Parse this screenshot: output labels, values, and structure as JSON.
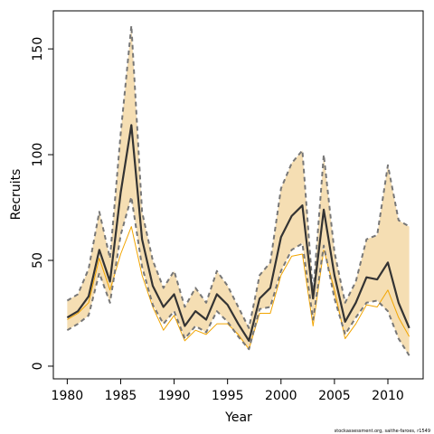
{
  "chart_data": {
    "type": "line",
    "title": "",
    "xlabel": "Year",
    "ylabel": "Recruits",
    "xlim": [
      1978.7,
      2013.3
    ],
    "ylim": [
      -6,
      168
    ],
    "x_ticks": [
      1980,
      1985,
      1990,
      1995,
      2000,
      2005,
      2010
    ],
    "y_ticks": [
      0,
      50,
      100,
      150
    ],
    "grid": false,
    "legend": "none",
    "x": [
      1980,
      1981,
      1982,
      1983,
      1984,
      1985,
      1986,
      1987,
      1988,
      1989,
      1990,
      1991,
      1992,
      1993,
      1994,
      1995,
      1996,
      1997,
      1998,
      1999,
      2000,
      2001,
      2002,
      2003,
      2004,
      2005,
      2006,
      2007,
      2008,
      2009,
      2010,
      2011,
      2012
    ],
    "series": [
      {
        "role": "upper-bound",
        "color": "#777777",
        "values": [
          31,
          34,
          46,
          73,
          51,
          110,
          161,
          73,
          50,
          37,
          45,
          28,
          37,
          30,
          45,
          38,
          28,
          18,
          43,
          49,
          84,
          96,
          102,
          34,
          100,
          54,
          30,
          40,
          60,
          62,
          95,
          69,
          66
        ]
      },
      {
        "role": "estimate",
        "color": "#333333",
        "values": [
          23,
          26,
          33,
          55,
          40,
          82,
          114,
          60,
          38,
          28,
          34,
          19,
          26,
          22,
          34,
          29,
          20,
          12,
          32,
          37,
          61,
          71,
          76,
          32,
          74,
          43,
          21,
          30,
          42,
          41,
          49,
          30,
          18
        ]
      },
      {
        "role": "lower-bound",
        "color": "#777777",
        "values": [
          17,
          20,
          24,
          44,
          30,
          62,
          80,
          47,
          29,
          20,
          26,
          13,
          19,
          16,
          26,
          21,
          14,
          8,
          27,
          28,
          45,
          55,
          58,
          22,
          57,
          32,
          15,
          23,
          30,
          31,
          26,
          13,
          5
        ]
      },
      {
        "role": "alternate-estimate",
        "color": "#f2a500",
        "values": [
          22,
          25,
          30,
          51,
          36,
          53,
          66,
          43,
          28,
          17,
          24,
          12,
          17,
          15,
          20,
          20,
          15,
          8,
          25,
          25,
          43,
          52,
          53,
          19,
          55,
          36,
          13,
          20,
          29,
          28,
          36,
          23,
          14
        ]
      }
    ],
    "band_color": "#f5deb3"
  },
  "credit": "stockassessment.org, saithe-faroes, r1549"
}
